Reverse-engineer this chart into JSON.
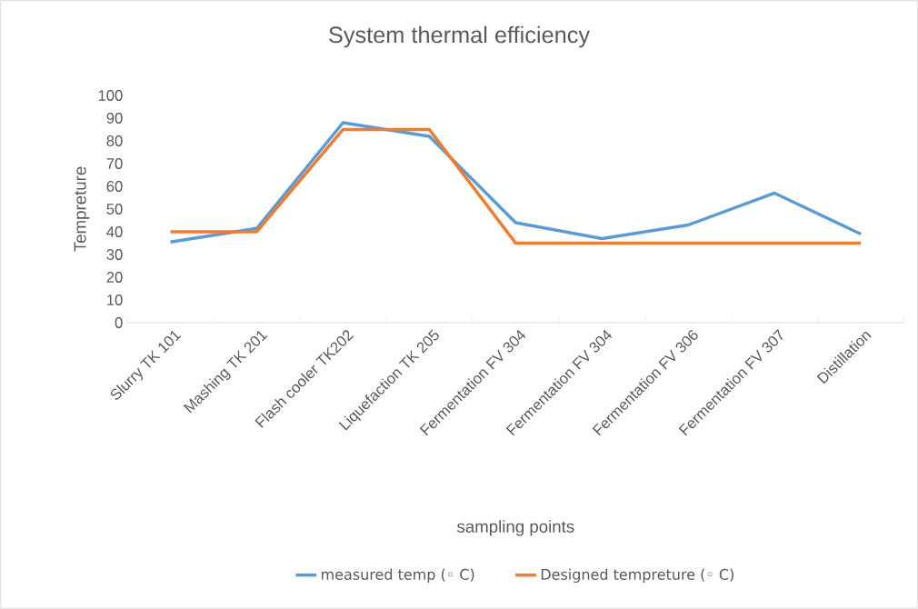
{
  "chart_data": {
    "type": "line",
    "title": "System  thermal efficiency",
    "xlabel": "sampling points",
    "ylabel": "Tempreture",
    "categories": [
      "Slurry TK 101",
      "Mashing TK 201",
      "Flash cooler TK202",
      "Liquefaction TK 205",
      "Fermentation FV 304",
      "Fermentation FV 304",
      "Fermentation FV 306",
      "Fermentation FV 307",
      "Distillation"
    ],
    "series": [
      {
        "name": "measured temp (◦ C)",
        "color": "#5b9bd5",
        "values": [
          35.5,
          41.5,
          88,
          82,
          44,
          37,
          43,
          57,
          39
        ]
      },
      {
        "name": "Designed tempreture (◦ C)",
        "color": "#ed7d31",
        "values": [
          40,
          40,
          85,
          85,
          35,
          35,
          35,
          35,
          35
        ]
      }
    ],
    "ylim": [
      0,
      100
    ],
    "yticks": [
      0,
      10,
      20,
      30,
      40,
      50,
      60,
      70,
      80,
      90,
      100
    ],
    "grid": false,
    "legend": "bottom",
    "marker": "none",
    "line_style": "solid"
  }
}
